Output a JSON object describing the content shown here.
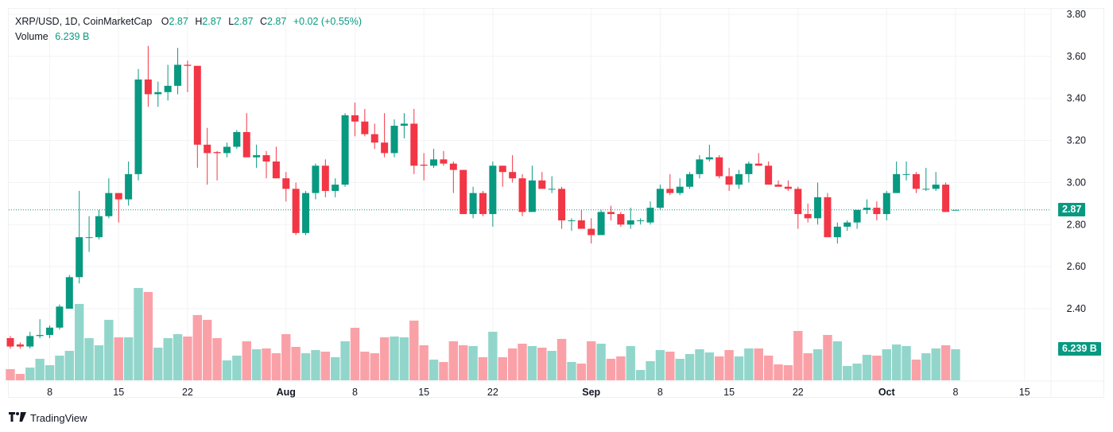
{
  "legend": {
    "symbol": "XRP/USD, 1D, CoinMarketCap",
    "o_label": "O",
    "o": "2.87",
    "h_label": "H",
    "h": "2.87",
    "l_label": "L",
    "l": "2.87",
    "c_label": "C",
    "c": "2.87",
    "change": "+0.02 (+0.55%)",
    "volume_label": "Volume",
    "volume": "6.239 B"
  },
  "last_price_tag": "2.87",
  "last_volume_tag": "6.239 B",
  "brand": "TradingView",
  "colors": {
    "up": "#089981",
    "down": "#f23645",
    "up_vol": "#92d6cb",
    "down_vol": "#faa1a8"
  },
  "chart_data": {
    "type": "candlestick",
    "title": "XRP/USD, 1D, CoinMarketCap",
    "ylabel": "",
    "xlabel": "",
    "ylim": [
      2.2,
      3.84
    ],
    "yticks": [
      "3.80",
      "3.60",
      "3.40",
      "3.20",
      "3.00",
      "2.80",
      "2.60",
      "2.40"
    ],
    "ytick_values": [
      3.8,
      3.6,
      3.4,
      3.2,
      3.0,
      2.8,
      2.6,
      2.4
    ],
    "xticks": [
      {
        "label": "8",
        "index": 4,
        "bold": false
      },
      {
        "label": "15",
        "index": 11,
        "bold": false
      },
      {
        "label": "22",
        "index": 18,
        "bold": false
      },
      {
        "label": "Aug",
        "index": 28,
        "bold": true
      },
      {
        "label": "8",
        "index": 35,
        "bold": false
      },
      {
        "label": "15",
        "index": 42,
        "bold": false
      },
      {
        "label": "22",
        "index": 49,
        "bold": false
      },
      {
        "label": "Sep",
        "index": 59,
        "bold": true
      },
      {
        "label": "8",
        "index": 66,
        "bold": false
      },
      {
        "label": "15",
        "index": 73,
        "bold": false
      },
      {
        "label": "22",
        "index": 80,
        "bold": false
      },
      {
        "label": "Oct",
        "index": 89,
        "bold": true
      },
      {
        "label": "8",
        "index": 96,
        "bold": false
      },
      {
        "label": "15",
        "index": 103,
        "bold": false
      }
    ],
    "last_price": 2.87,
    "grid": true,
    "volume_unit": "B",
    "ohlc": [
      [
        2.26,
        2.27,
        2.21,
        2.22
      ],
      [
        2.23,
        2.24,
        2.21,
        2.22
      ],
      [
        2.22,
        2.29,
        2.21,
        2.27
      ],
      [
        2.27,
        2.35,
        2.26,
        2.275
      ],
      [
        2.275,
        2.32,
        2.26,
        2.31
      ],
      [
        2.31,
        2.42,
        2.3,
        2.41
      ],
      [
        2.4,
        2.56,
        2.4,
        2.55
      ],
      [
        2.55,
        2.96,
        2.52,
        2.74
      ],
      [
        2.74,
        2.84,
        2.67,
        2.74
      ],
      [
        2.74,
        2.87,
        2.73,
        2.84
      ],
      [
        2.84,
        3.02,
        2.83,
        2.95
      ],
      [
        2.95,
        2.95,
        2.81,
        2.92
      ],
      [
        2.92,
        3.1,
        2.89,
        3.04
      ],
      [
        3.04,
        3.54,
        3.01,
        3.49
      ],
      [
        3.49,
        3.65,
        3.36,
        3.42
      ],
      [
        3.42,
        3.48,
        3.36,
        3.43
      ],
      [
        3.43,
        3.56,
        3.39,
        3.46
      ],
      [
        3.46,
        3.64,
        3.42,
        3.56
      ],
      [
        3.56,
        3.58,
        3.43,
        3.555
      ],
      [
        3.555,
        3.555,
        3.07,
        3.18
      ],
      [
        3.18,
        3.26,
        2.99,
        3.14
      ],
      [
        3.145,
        3.15,
        3.01,
        3.14
      ],
      [
        3.14,
        3.19,
        3.12,
        3.17
      ],
      [
        3.17,
        3.25,
        3.16,
        3.24
      ],
      [
        3.24,
        3.33,
        3.12,
        3.12
      ],
      [
        3.12,
        3.18,
        3.07,
        3.13
      ],
      [
        3.13,
        3.15,
        3.02,
        3.1
      ],
      [
        3.1,
        3.17,
        3.02,
        3.02
      ],
      [
        3.02,
        3.05,
        2.91,
        2.97
      ],
      [
        2.97,
        3.0,
        2.75,
        2.76
      ],
      [
        2.76,
        2.96,
        2.75,
        2.95
      ],
      [
        2.95,
        3.09,
        2.92,
        3.08
      ],
      [
        3.08,
        3.11,
        2.93,
        2.96
      ],
      [
        2.96,
        3.02,
        2.93,
        2.99
      ],
      [
        2.99,
        3.33,
        2.98,
        3.32
      ],
      [
        3.32,
        3.38,
        3.22,
        3.29
      ],
      [
        3.29,
        3.35,
        3.22,
        3.23
      ],
      [
        3.23,
        3.28,
        3.16,
        3.19
      ],
      [
        3.19,
        3.33,
        3.12,
        3.14
      ],
      [
        3.14,
        3.3,
        3.12,
        3.27
      ],
      [
        3.27,
        3.33,
        3.21,
        3.28
      ],
      [
        3.28,
        3.35,
        3.04,
        3.08
      ],
      [
        3.085,
        3.14,
        3.01,
        3.08
      ],
      [
        3.08,
        3.16,
        3.07,
        3.11
      ],
      [
        3.11,
        3.15,
        3.08,
        3.09
      ],
      [
        3.09,
        3.1,
        2.95,
        3.06
      ],
      [
        3.06,
        3.06,
        2.85,
        2.85
      ],
      [
        2.85,
        2.98,
        2.83,
        2.95
      ],
      [
        2.95,
        2.96,
        2.84,
        2.85
      ],
      [
        2.85,
        3.1,
        2.79,
        3.08
      ],
      [
        3.08,
        3.08,
        2.98,
        3.05
      ],
      [
        3.05,
        3.13,
        3.0,
        3.02
      ],
      [
        3.02,
        3.04,
        2.84,
        2.86
      ],
      [
        2.86,
        3.08,
        2.86,
        3.01
      ],
      [
        3.01,
        3.05,
        2.97,
        2.97
      ],
      [
        2.97,
        3.03,
        2.95,
        2.97
      ],
      [
        2.97,
        2.98,
        2.78,
        2.82
      ],
      [
        2.82,
        2.83,
        2.77,
        2.82
      ],
      [
        2.82,
        2.87,
        2.78,
        2.78
      ],
      [
        2.78,
        2.83,
        2.71,
        2.75
      ],
      [
        2.75,
        2.87,
        2.75,
        2.86
      ],
      [
        2.86,
        2.89,
        2.82,
        2.85
      ],
      [
        2.85,
        2.86,
        2.79,
        2.8
      ],
      [
        2.8,
        2.88,
        2.78,
        2.82
      ],
      [
        2.82,
        2.83,
        2.8,
        2.82
      ],
      [
        2.81,
        2.91,
        2.8,
        2.88
      ],
      [
        2.88,
        2.99,
        2.87,
        2.97
      ],
      [
        2.97,
        3.04,
        2.94,
        2.95
      ],
      [
        2.95,
        3.02,
        2.94,
        2.98
      ],
      [
        2.98,
        3.05,
        2.97,
        3.04
      ],
      [
        3.04,
        3.13,
        3.02,
        3.11
      ],
      [
        3.11,
        3.18,
        3.1,
        3.12
      ],
      [
        3.12,
        3.13,
        3.02,
        3.03
      ],
      [
        3.03,
        3.07,
        2.96,
        2.99
      ],
      [
        2.99,
        3.06,
        2.97,
        3.04
      ],
      [
        3.04,
        3.1,
        3.0,
        3.09
      ],
      [
        3.09,
        3.14,
        3.08,
        3.08
      ],
      [
        3.08,
        3.1,
        2.99,
        2.99
      ],
      [
        2.99,
        3.01,
        2.98,
        2.98
      ],
      [
        2.98,
        3.01,
        2.96,
        2.97
      ],
      [
        2.97,
        2.98,
        2.78,
        2.85
      ],
      [
        2.85,
        2.9,
        2.81,
        2.83
      ],
      [
        2.83,
        3.0,
        2.8,
        2.93
      ],
      [
        2.93,
        2.95,
        2.74,
        2.74
      ],
      [
        2.74,
        2.81,
        2.71,
        2.79
      ],
      [
        2.79,
        2.82,
        2.77,
        2.81
      ],
      [
        2.81,
        2.87,
        2.78,
        2.87
      ],
      [
        2.87,
        2.92,
        2.85,
        2.88
      ],
      [
        2.88,
        2.91,
        2.82,
        2.85
      ],
      [
        2.85,
        2.96,
        2.82,
        2.95
      ],
      [
        2.95,
        3.1,
        2.95,
        3.04
      ],
      [
        3.04,
        3.1,
        3.01,
        3.04
      ],
      [
        3.04,
        3.05,
        2.95,
        2.97
      ],
      [
        2.97,
        3.07,
        2.96,
        2.97
      ],
      [
        2.97,
        3.05,
        2.96,
        2.99
      ],
      [
        2.99,
        3.0,
        2.86,
        2.86
      ],
      [
        2.87,
        2.87,
        2.87,
        2.87
      ]
    ],
    "volume": [
      2.24,
      1.28,
      2.56,
      4.32,
      3.04,
      4.96,
      5.92,
      15.36,
      8.48,
      7.04,
      12.16,
      8.64,
      8.64,
      18.56,
      17.76,
      6.56,
      8.48,
      9.28,
      8.8,
      13.12,
      12.16,
      8.48,
      4.0,
      4.96,
      7.84,
      6.24,
      6.4,
      5.44,
      9.28,
      6.72,
      5.44,
      6.08,
      5.76,
      4.64,
      7.84,
      10.56,
      5.76,
      5.44,
      8.64,
      8.8,
      8.64,
      12.0,
      7.04,
      4.16,
      3.68,
      7.84,
      7.04,
      6.88,
      4.64,
      9.76,
      4.64,
      6.4,
      7.36,
      6.88,
      6.56,
      5.92,
      8.32,
      3.68,
      3.36,
      7.84,
      7.36,
      4.32,
      4.8,
      6.88,
      2.08,
      3.84,
      6.08,
      5.76,
      4.32,
      5.28,
      6.24,
      5.6,
      4.8,
      6.08,
      4.8,
      6.4,
      6.4,
      4.96,
      3.2,
      3.04,
      9.92,
      5.44,
      6.24,
      9.12,
      7.84,
      2.88,
      3.36,
      5.12,
      4.96,
      6.24,
      7.2,
      6.88,
      4.16,
      5.44,
      6.4,
      7.04,
      6.239
    ]
  }
}
